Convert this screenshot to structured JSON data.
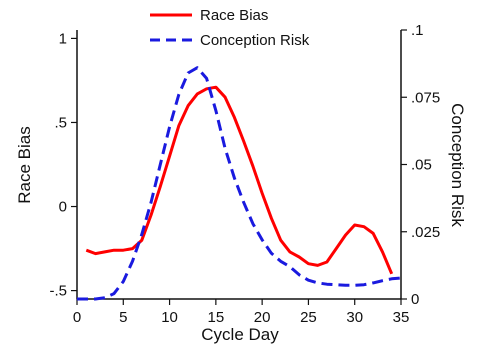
{
  "chart_data": {
    "type": "line",
    "title": "",
    "xlabel": "Cycle Day",
    "ylabel_left": "Race Bias",
    "ylabel_right": "Conception Risk",
    "xlim": [
      0,
      35
    ],
    "ylim_left": [
      -0.55,
      1.05
    ],
    "ylim_right": [
      0,
      0.1
    ],
    "x_ticks": [
      0,
      5,
      10,
      15,
      20,
      25,
      30,
      35
    ],
    "x_tick_labels": [
      "0",
      "5",
      "10",
      "15",
      "20",
      "25",
      "30",
      "35"
    ],
    "y_left_ticks": [
      -0.5,
      0,
      0.5,
      1
    ],
    "y_left_tick_labels": [
      "-.5",
      "0",
      ".5",
      "1"
    ],
    "y_right_ticks": [
      0,
      0.025,
      0.05,
      0.075,
      0.1
    ],
    "y_right_tick_labels": [
      "0",
      ".025",
      ".05",
      ".075",
      ".1"
    ],
    "grid": false,
    "legend_position": "top",
    "series": [
      {
        "name": "Race Bias",
        "axis": "left",
        "color": "#ff0000",
        "dash": "solid",
        "x": [
          1,
          2,
          3,
          4,
          5,
          6,
          7,
          8,
          9,
          10,
          11,
          12,
          13,
          14,
          15,
          16,
          17,
          18,
          19,
          20,
          21,
          22,
          23,
          24,
          25,
          26,
          27,
          28,
          29,
          30,
          31,
          32,
          33,
          34
        ],
        "y": [
          -0.26,
          -0.28,
          -0.27,
          -0.26,
          -0.26,
          -0.25,
          -0.2,
          -0.05,
          0.12,
          0.3,
          0.48,
          0.6,
          0.67,
          0.7,
          0.71,
          0.65,
          0.53,
          0.39,
          0.24,
          0.08,
          -0.07,
          -0.2,
          -0.27,
          -0.3,
          -0.34,
          -0.35,
          -0.33,
          -0.25,
          -0.17,
          -0.11,
          -0.12,
          -0.16,
          -0.27,
          -0.4
        ]
      },
      {
        "name": "Conception Risk",
        "axis": "right",
        "color": "#1a1adf",
        "dash": "dashed",
        "x": [
          0,
          1,
          2,
          3,
          4,
          5,
          6,
          7,
          8,
          9,
          10,
          11,
          12,
          13,
          14,
          15,
          16,
          17,
          18,
          19,
          20,
          21,
          22,
          23,
          24,
          25,
          26,
          27,
          28,
          29,
          30,
          31,
          32,
          33,
          34,
          35
        ],
        "y": [
          0.0,
          0.0,
          0.0,
          0.0005,
          0.002,
          0.0065,
          0.014,
          0.024,
          0.036,
          0.05,
          0.064,
          0.076,
          0.084,
          0.086,
          0.082,
          0.07,
          0.056,
          0.045,
          0.036,
          0.028,
          0.022,
          0.017,
          0.014,
          0.012,
          0.009,
          0.007,
          0.006,
          0.0055,
          0.0053,
          0.0051,
          0.0051,
          0.0053,
          0.006,
          0.0068,
          0.0075,
          0.0078
        ]
      }
    ]
  }
}
